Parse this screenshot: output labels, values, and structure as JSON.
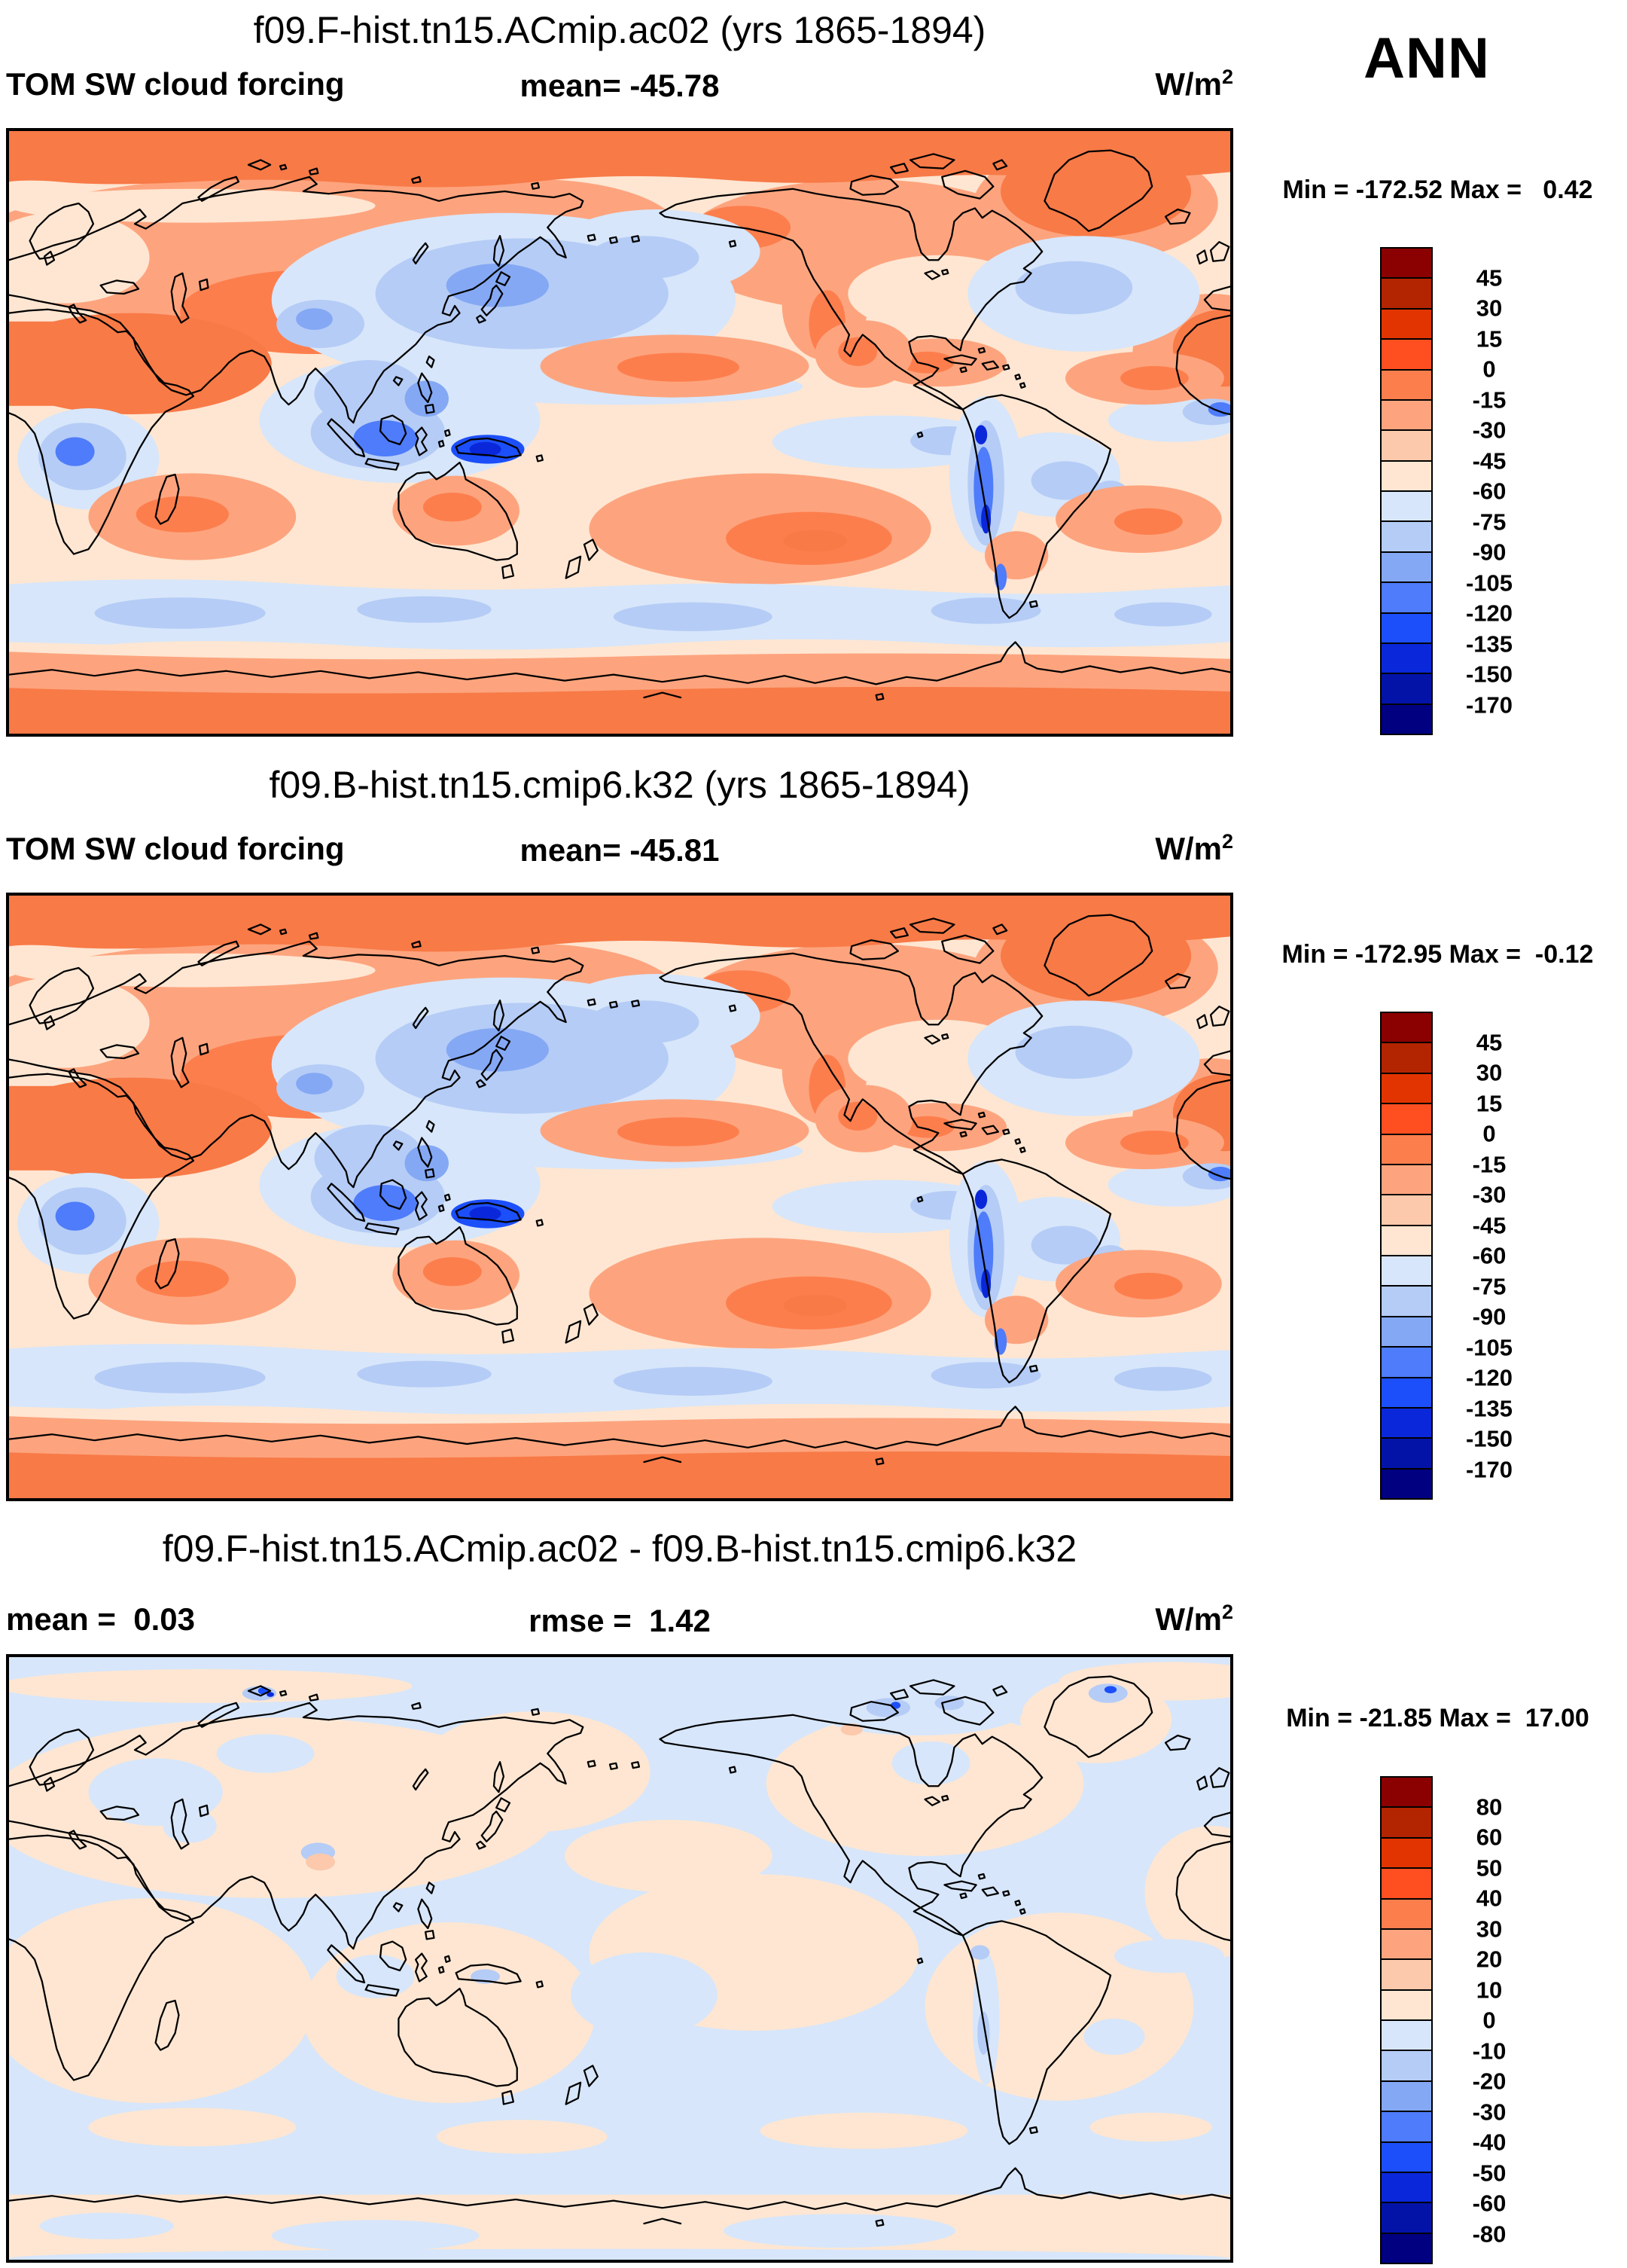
{
  "season": "ANN",
  "palette": [
    "#8b0000",
    "#b32400",
    "#e23400",
    "#ff4f21",
    "#fd7e4d",
    "#fda47e",
    "#fcc9ac",
    "#fee6d2",
    "#d7e6fa",
    "#b5ccf6",
    "#84a8f4",
    "#4e7cfa",
    "#1c4ffa",
    "#0a28da",
    "#0313a8",
    "#000080"
  ],
  "panels": [
    {
      "title": "f09.F-hist.tn15.ACmip.ac02 (yrs 1865-1894)",
      "left_label": "TOM SW cloud forcing",
      "center_label": "mean= -45.78",
      "units_base": "W/m",
      "units_exp": "2",
      "minmax": "Min = -172.52 Max =   0.42",
      "colorbar": {
        "colors": [
          "#8b0000",
          "#b32400",
          "#e23400",
          "#ff4f21",
          "#fd7e4d",
          "#fda47e",
          "#fcc9ac",
          "#fee6d2",
          "#d7e6fa",
          "#b5ccf6",
          "#84a8f4",
          "#4e7cfa",
          "#1c4ffa",
          "#0a28da",
          "#0313a8",
          "#000080"
        ],
        "ticks": [
          "45",
          "30",
          "15",
          "0",
          "-15",
          "-30",
          "-45",
          "-60",
          "-75",
          "-90",
          "-105",
          "-120",
          "-135",
          "-150",
          "-170"
        ]
      }
    },
    {
      "title": "f09.B-hist.tn15.cmip6.k32 (yrs 1865-1894)",
      "left_label": "TOM SW cloud forcing",
      "center_label": "mean= -45.81",
      "units_base": "W/m",
      "units_exp": "2",
      "minmax": "Min = -172.95 Max =  -0.12",
      "colorbar": {
        "colors": [
          "#8b0000",
          "#b32400",
          "#e23400",
          "#ff4f21",
          "#fd7e4d",
          "#fda47e",
          "#fcc9ac",
          "#fee6d2",
          "#d7e6fa",
          "#b5ccf6",
          "#84a8f4",
          "#4e7cfa",
          "#1c4ffa",
          "#0a28da",
          "#0313a8",
          "#000080"
        ],
        "ticks": [
          "45",
          "30",
          "15",
          "0",
          "-15",
          "-30",
          "-45",
          "-60",
          "-75",
          "-90",
          "-105",
          "-120",
          "-135",
          "-150",
          "-170"
        ]
      }
    },
    {
      "title": "f09.F-hist.tn15.ACmip.ac02 - f09.B-hist.tn15.cmip6.k32",
      "left_label": "mean =  0.03",
      "center_label": "rmse =  1.42",
      "units_base": "W/m",
      "units_exp": "2",
      "minmax": "Min = -21.85 Max =  17.00",
      "colorbar": {
        "colors": [
          "#8b0000",
          "#b32400",
          "#e23400",
          "#ff4f21",
          "#fd7e4d",
          "#fda47e",
          "#fcc9ac",
          "#fee6d2",
          "#d7e6fa",
          "#b5ccf6",
          "#84a8f4",
          "#4e7cfa",
          "#1c4ffa",
          "#0a28da",
          "#0313a8",
          "#000080"
        ],
        "ticks": [
          "80",
          "60",
          "50",
          "40",
          "30",
          "20",
          "10",
          "0",
          "-10",
          "-20",
          "-30",
          "-40",
          "-50",
          "-60",
          "-80"
        ]
      }
    }
  ],
  "chart_data": [
    {
      "type": "heatmap",
      "subtype": "filled-contour world map, cylindrical equidistant, Pacific-centered",
      "title": "f09.F-hist.tn15.ACmip.ac02 (yrs 1865-1894)",
      "variable": "TOM SW cloud forcing",
      "season": "ANN",
      "units": "W/m2",
      "mean": -45.78,
      "min": -172.52,
      "max": 0.42,
      "contour_levels": [
        45,
        30,
        15,
        0,
        -15,
        -30,
        -45,
        -60,
        -75,
        -90,
        -105,
        -120,
        -135,
        -150,
        -170
      ],
      "legend_position": "right"
    },
    {
      "type": "heatmap",
      "subtype": "filled-contour world map, cylindrical equidistant, Pacific-centered",
      "title": "f09.B-hist.tn15.cmip6.k32 (yrs 1865-1894)",
      "variable": "TOM SW cloud forcing",
      "season": "ANN",
      "units": "W/m2",
      "mean": -45.81,
      "min": -172.95,
      "max": -0.12,
      "contour_levels": [
        45,
        30,
        15,
        0,
        -15,
        -30,
        -45,
        -60,
        -75,
        -90,
        -105,
        -120,
        -135,
        -150,
        -170
      ],
      "legend_position": "right"
    },
    {
      "type": "heatmap",
      "subtype": "difference map (panel1 - panel2), cylindrical equidistant, Pacific-centered",
      "title": "f09.F-hist.tn15.ACmip.ac02 - f09.B-hist.tn15.cmip6.k32",
      "variable": "TOM SW cloud forcing difference",
      "units": "W/m2",
      "mean": 0.03,
      "rmse": 1.42,
      "min": -21.85,
      "max": 17.0,
      "contour_levels": [
        80,
        60,
        50,
        40,
        30,
        20,
        10,
        0,
        -10,
        -20,
        -30,
        -40,
        -50,
        -60,
        -80
      ],
      "legend_position": "right"
    }
  ]
}
